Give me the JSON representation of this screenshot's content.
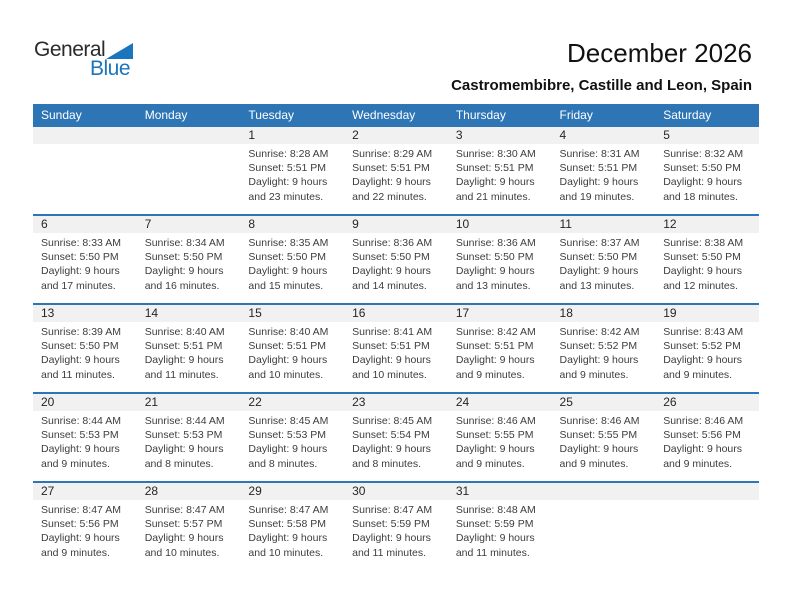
{
  "logo": {
    "general": "General",
    "blue": "Blue"
  },
  "header": {
    "title": "December 2026",
    "subtitle": "Castromembibre, Castille and Leon, Spain"
  },
  "colors": {
    "header_blue": "#2E75B6",
    "week_separator_blue": "#2E75B6",
    "number_band_gray": "#F1F1F1",
    "logo_blue": "#1B75BC",
    "body_text": "#3D3D3D"
  },
  "calendar": {
    "day_headers": [
      "Sunday",
      "Monday",
      "Tuesday",
      "Wednesday",
      "Thursday",
      "Friday",
      "Saturday"
    ],
    "labels": {
      "sunrise": "Sunrise:",
      "sunset": "Sunset:",
      "daylight": "Daylight:"
    },
    "weeks": [
      [
        null,
        null,
        {
          "day": "1",
          "sunrise": "8:28 AM",
          "sunset": "5:51 PM",
          "daylight": "9 hours and 23 minutes."
        },
        {
          "day": "2",
          "sunrise": "8:29 AM",
          "sunset": "5:51 PM",
          "daylight": "9 hours and 22 minutes."
        },
        {
          "day": "3",
          "sunrise": "8:30 AM",
          "sunset": "5:51 PM",
          "daylight": "9 hours and 21 minutes."
        },
        {
          "day": "4",
          "sunrise": "8:31 AM",
          "sunset": "5:51 PM",
          "daylight": "9 hours and 19 minutes."
        },
        {
          "day": "5",
          "sunrise": "8:32 AM",
          "sunset": "5:50 PM",
          "daylight": "9 hours and 18 minutes."
        }
      ],
      [
        {
          "day": "6",
          "sunrise": "8:33 AM",
          "sunset": "5:50 PM",
          "daylight": "9 hours and 17 minutes."
        },
        {
          "day": "7",
          "sunrise": "8:34 AM",
          "sunset": "5:50 PM",
          "daylight": "9 hours and 16 minutes."
        },
        {
          "day": "8",
          "sunrise": "8:35 AM",
          "sunset": "5:50 PM",
          "daylight": "9 hours and 15 minutes."
        },
        {
          "day": "9",
          "sunrise": "8:36 AM",
          "sunset": "5:50 PM",
          "daylight": "9 hours and 14 minutes."
        },
        {
          "day": "10",
          "sunrise": "8:36 AM",
          "sunset": "5:50 PM",
          "daylight": "9 hours and 13 minutes."
        },
        {
          "day": "11",
          "sunrise": "8:37 AM",
          "sunset": "5:50 PM",
          "daylight": "9 hours and 13 minutes."
        },
        {
          "day": "12",
          "sunrise": "8:38 AM",
          "sunset": "5:50 PM",
          "daylight": "9 hours and 12 minutes."
        }
      ],
      [
        {
          "day": "13",
          "sunrise": "8:39 AM",
          "sunset": "5:50 PM",
          "daylight": "9 hours and 11 minutes."
        },
        {
          "day": "14",
          "sunrise": "8:40 AM",
          "sunset": "5:51 PM",
          "daylight": "9 hours and 11 minutes."
        },
        {
          "day": "15",
          "sunrise": "8:40 AM",
          "sunset": "5:51 PM",
          "daylight": "9 hours and 10 minutes."
        },
        {
          "day": "16",
          "sunrise": "8:41 AM",
          "sunset": "5:51 PM",
          "daylight": "9 hours and 10 minutes."
        },
        {
          "day": "17",
          "sunrise": "8:42 AM",
          "sunset": "5:51 PM",
          "daylight": "9 hours and 9 minutes."
        },
        {
          "day": "18",
          "sunrise": "8:42 AM",
          "sunset": "5:52 PM",
          "daylight": "9 hours and 9 minutes."
        },
        {
          "day": "19",
          "sunrise": "8:43 AM",
          "sunset": "5:52 PM",
          "daylight": "9 hours and 9 minutes."
        }
      ],
      [
        {
          "day": "20",
          "sunrise": "8:44 AM",
          "sunset": "5:53 PM",
          "daylight": "9 hours and 9 minutes."
        },
        {
          "day": "21",
          "sunrise": "8:44 AM",
          "sunset": "5:53 PM",
          "daylight": "9 hours and 8 minutes."
        },
        {
          "day": "22",
          "sunrise": "8:45 AM",
          "sunset": "5:53 PM",
          "daylight": "9 hours and 8 minutes."
        },
        {
          "day": "23",
          "sunrise": "8:45 AM",
          "sunset": "5:54 PM",
          "daylight": "9 hours and 8 minutes."
        },
        {
          "day": "24",
          "sunrise": "8:46 AM",
          "sunset": "5:55 PM",
          "daylight": "9 hours and 9 minutes."
        },
        {
          "day": "25",
          "sunrise": "8:46 AM",
          "sunset": "5:55 PM",
          "daylight": "9 hours and 9 minutes."
        },
        {
          "day": "26",
          "sunrise": "8:46 AM",
          "sunset": "5:56 PM",
          "daylight": "9 hours and 9 minutes."
        }
      ],
      [
        {
          "day": "27",
          "sunrise": "8:47 AM",
          "sunset": "5:56 PM",
          "daylight": "9 hours and 9 minutes."
        },
        {
          "day": "28",
          "sunrise": "8:47 AM",
          "sunset": "5:57 PM",
          "daylight": "9 hours and 10 minutes."
        },
        {
          "day": "29",
          "sunrise": "8:47 AM",
          "sunset": "5:58 PM",
          "daylight": "9 hours and 10 minutes."
        },
        {
          "day": "30",
          "sunrise": "8:47 AM",
          "sunset": "5:59 PM",
          "daylight": "9 hours and 11 minutes."
        },
        {
          "day": "31",
          "sunrise": "8:48 AM",
          "sunset": "5:59 PM",
          "daylight": "9 hours and 11 minutes."
        },
        null,
        null
      ]
    ]
  }
}
